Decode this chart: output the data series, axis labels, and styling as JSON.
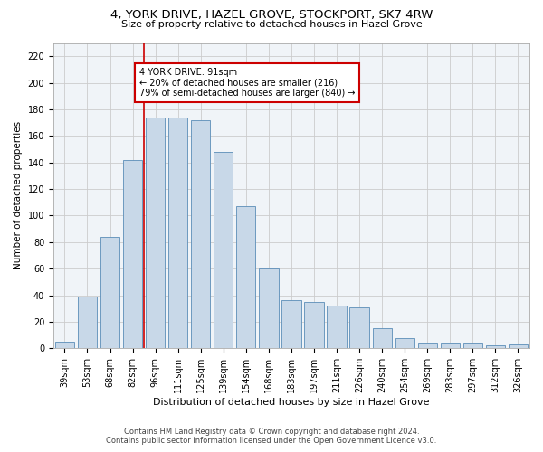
{
  "title": "4, YORK DRIVE, HAZEL GROVE, STOCKPORT, SK7 4RW",
  "subtitle": "Size of property relative to detached houses in Hazel Grove",
  "xlabel": "Distribution of detached houses by size in Hazel Grove",
  "ylabel": "Number of detached properties",
  "bar_labels": [
    "39sqm",
    "53sqm",
    "68sqm",
    "82sqm",
    "96sqm",
    "111sqm",
    "125sqm",
    "139sqm",
    "154sqm",
    "168sqm",
    "183sqm",
    "197sqm",
    "211sqm",
    "226sqm",
    "240sqm",
    "254sqm",
    "269sqm",
    "283sqm",
    "297sqm",
    "312sqm",
    "326sqm"
  ],
  "bar_values": [
    5,
    39,
    84,
    142,
    174,
    174,
    172,
    148,
    107,
    60,
    36,
    35,
    32,
    31,
    15,
    8,
    4,
    4,
    4,
    2,
    3
  ],
  "bar_color": "#c8d8e8",
  "bar_edge_color": "#5b8db8",
  "property_line_x": 3.5,
  "annotation_text": "4 YORK DRIVE: 91sqm\n← 20% of detached houses are smaller (216)\n79% of semi-detached houses are larger (840) →",
  "annotation_box_color": "#ffffff",
  "annotation_box_edge": "#cc0000",
  "vline_color": "#cc0000",
  "grid_color": "#cccccc",
  "footer_line1": "Contains HM Land Registry data © Crown copyright and database right 2024.",
  "footer_line2": "Contains public sector information licensed under the Open Government Licence v3.0.",
  "ylim": [
    0,
    230
  ],
  "yticks": [
    0,
    20,
    40,
    60,
    80,
    100,
    120,
    140,
    160,
    180,
    200,
    220
  ],
  "title_fontsize": 9.5,
  "subtitle_fontsize": 8,
  "tick_fontsize": 7,
  "ylabel_fontsize": 7.5,
  "xlabel_fontsize": 8,
  "footer_fontsize": 6,
  "annotation_fontsize": 7
}
